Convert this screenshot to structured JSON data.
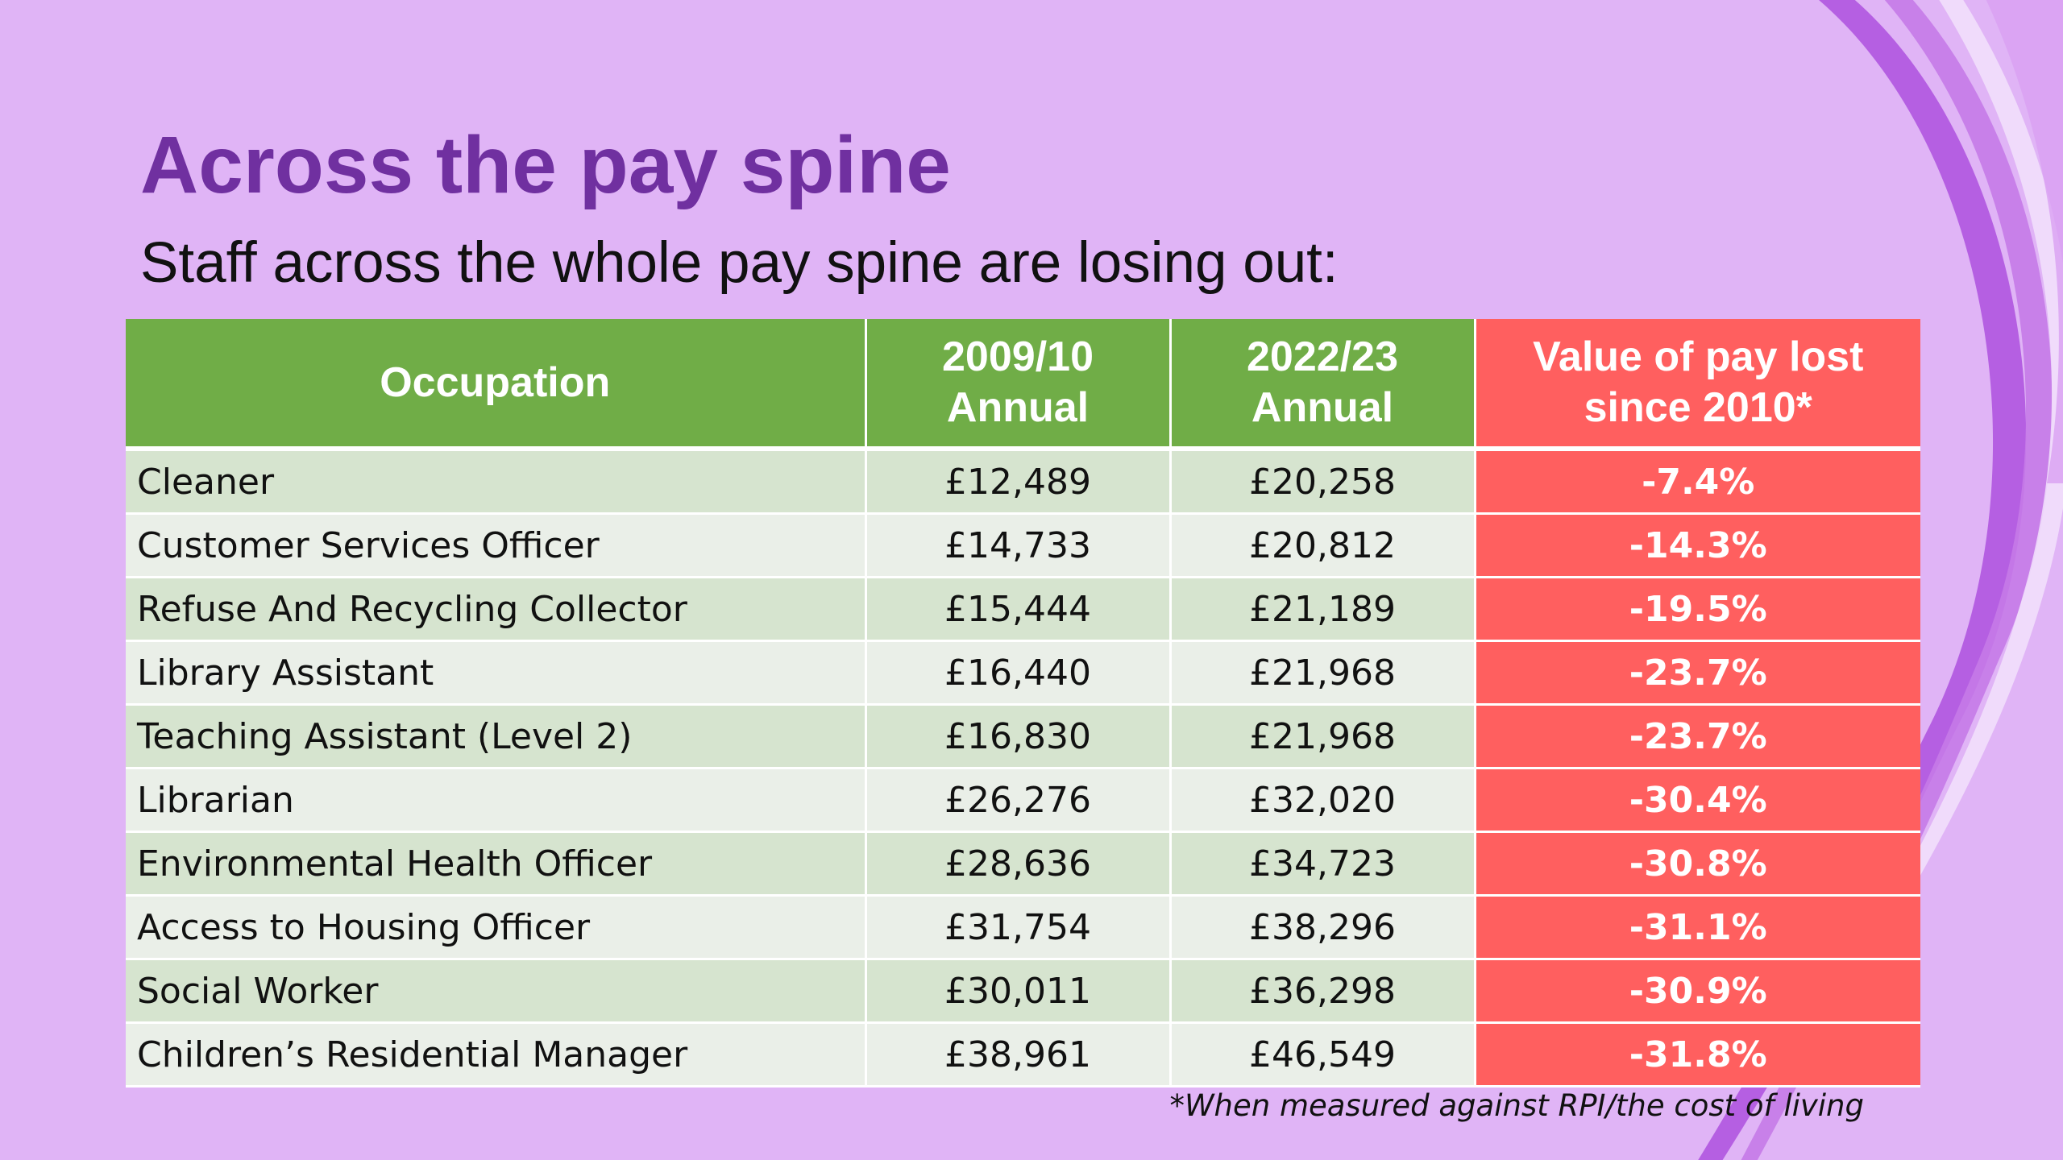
{
  "slide": {
    "title": "Across the pay spine",
    "subtitle": "Staff across the whole pay spine are losing out:",
    "footnote": "*When measured against RPI/the cost of living"
  },
  "colors": {
    "background": "#e0b4f6",
    "title": "#7030a0",
    "header_green": "#70ad47",
    "loss_red": "#ff5f5f",
    "row_band_dark": "#d6e4cf",
    "row_band_light": "#eaefe8",
    "ribbon": "#b055e0"
  },
  "table": {
    "headers": {
      "occupation": "Occupation",
      "annual_2009_line1": "2009/10",
      "annual_2009_line2": "Annual",
      "annual_2022_line1": "2022/23",
      "annual_2022_line2": "Annual",
      "lost_line1": "Value of pay lost",
      "lost_line2": "since 2010*"
    },
    "rows": [
      {
        "occupation": "Cleaner",
        "annual_2009_10": "£12,489",
        "annual_2022_23": "£20,258",
        "value_lost": "-7.4%"
      },
      {
        "occupation": "Customer Services Officer",
        "annual_2009_10": "£14,733",
        "annual_2022_23": "£20,812",
        "value_lost": "-14.3%"
      },
      {
        "occupation": "Refuse And Recycling Collector",
        "annual_2009_10": "£15,444",
        "annual_2022_23": "£21,189",
        "value_lost": "-19.5%"
      },
      {
        "occupation": "Library Assistant",
        "annual_2009_10": "£16,440",
        "annual_2022_23": "£21,968",
        "value_lost": "-23.7%"
      },
      {
        "occupation": "Teaching Assistant (Level 2)",
        "annual_2009_10": "£16,830",
        "annual_2022_23": "£21,968",
        "value_lost": "-23.7%"
      },
      {
        "occupation": "Librarian",
        "annual_2009_10": "£26,276",
        "annual_2022_23": "£32,020",
        "value_lost": "-30.4%"
      },
      {
        "occupation": "Environmental Health Officer",
        "annual_2009_10": "£28,636",
        "annual_2022_23": "£34,723",
        "value_lost": "-30.8%"
      },
      {
        "occupation": "Access to Housing Officer",
        "annual_2009_10": "£31,754",
        "annual_2022_23": "£38,296",
        "value_lost": "-31.1%"
      },
      {
        "occupation": "Social Worker",
        "annual_2009_10": "£30,011",
        "annual_2022_23": "£36,298",
        "value_lost": "-30.9%"
      },
      {
        "occupation": "Children’s Residential Manager",
        "annual_2009_10": "£38,961",
        "annual_2022_23": "£46,549",
        "value_lost": "-31.8%"
      }
    ]
  }
}
